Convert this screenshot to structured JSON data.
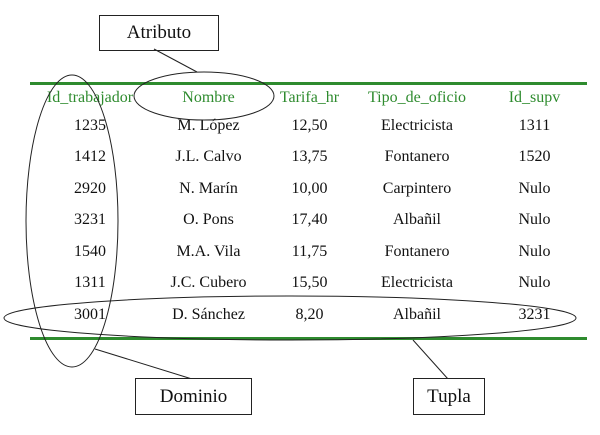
{
  "labels": {
    "attribute": "Atributo",
    "domain": "Dominio",
    "tuple": "Tupla"
  },
  "table": {
    "headers": [
      "Id_trabajador",
      "Nombre",
      "Tarifa_hr",
      "Tipo_de_oficio",
      "Id_supv"
    ],
    "rows": [
      [
        "1235",
        "M. López",
        "12,50",
        "Electricista",
        "1311"
      ],
      [
        "1412",
        "J.L. Calvo",
        "13,75",
        "Fontanero",
        "1520"
      ],
      [
        "2920",
        "N. Marín",
        "10,00",
        "Carpintero",
        "Nulo"
      ],
      [
        "3231",
        "O. Pons",
        "17,40",
        "Albañil",
        "Nulo"
      ],
      [
        "1540",
        "M.A. Vila",
        "11,75",
        "Fontanero",
        "Nulo"
      ],
      [
        "1311",
        "J.C. Cubero",
        "15,50",
        "Electricista",
        "Nulo"
      ],
      [
        "3001",
        "D. Sánchez",
        "8,20",
        "Albañil",
        "3231"
      ]
    ]
  },
  "colors": {
    "header_and_rules": "#2e8b2e",
    "outline": "#222222"
  }
}
